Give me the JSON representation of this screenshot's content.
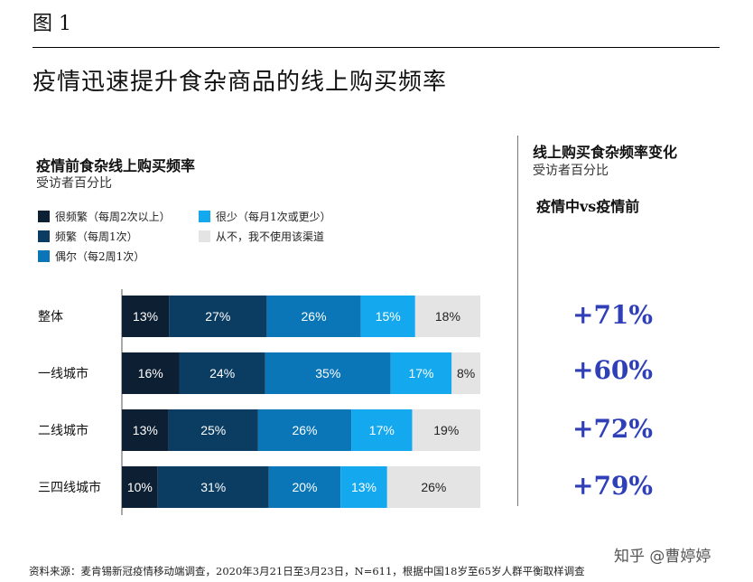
{
  "figure_label": "图 1",
  "main_title": "疫情迅速提升食杂商品的线上购买频率",
  "left_panel": {
    "title": "疫情前食杂线上购买频率",
    "subtitle": "受访者百分比"
  },
  "legend": [
    {
      "label": "很频繁（每周2次以上）",
      "color": "#0d1f33"
    },
    {
      "label": "频繁（每周1次）",
      "color": "#0b3d63"
    },
    {
      "label": "偶尔（每2周1次）",
      "color": "#0a76b8"
    },
    {
      "label": "很少（每月1次或更少）",
      "color": "#14a8ee"
    },
    {
      "label": "从不，我不使用该渠道",
      "color": "#e4e4e4"
    }
  ],
  "right_panel": {
    "title": "线上购买食杂频率变化",
    "subtitle": "受访者百分比",
    "compare_label": "疫情中vs疫情前",
    "changes": [
      "+71%",
      "+60%",
      "+72%",
      "+79%"
    ]
  },
  "chart_data": {
    "type": "bar",
    "orientation": "horizontal",
    "stacked": true,
    "categories": [
      "整体",
      "一线城市",
      "二线城市",
      "三四线城市"
    ],
    "series": [
      {
        "name": "很频繁（每周2次以上）",
        "values": [
          13,
          16,
          13,
          10
        ],
        "color": "#0d1f33"
      },
      {
        "name": "频繁（每周1次）",
        "values": [
          27,
          24,
          25,
          31
        ],
        "color": "#0b3d63"
      },
      {
        "name": "偶尔（每2周1次）",
        "values": [
          26,
          35,
          26,
          20
        ],
        "color": "#0a76b8"
      },
      {
        "name": "很少（每月1次或更少）",
        "values": [
          15,
          17,
          17,
          13
        ],
        "color": "#14a8ee"
      },
      {
        "name": "从不，我不使用该渠道",
        "values": [
          18,
          8,
          19,
          26
        ],
        "color": "#e4e4e4"
      }
    ],
    "data_labels": [
      [
        "13%",
        "27%",
        "26%",
        "15%",
        "18%"
      ],
      [
        "16%",
        "24%",
        "35%",
        "17%",
        "8%"
      ],
      [
        "13%",
        "25%",
        "26%",
        "17%",
        "19%"
      ],
      [
        "10%",
        "31%",
        "20%",
        "13%",
        "26%"
      ]
    ],
    "xlim": [
      0,
      100
    ]
  },
  "source": "资料来源：麦肯锡新冠疫情移动端调查，2020年3月21日至3月23日，N=611，根据中国18岁至65岁人群平衡取样调查",
  "watermark": "知乎 @曹婷婷"
}
